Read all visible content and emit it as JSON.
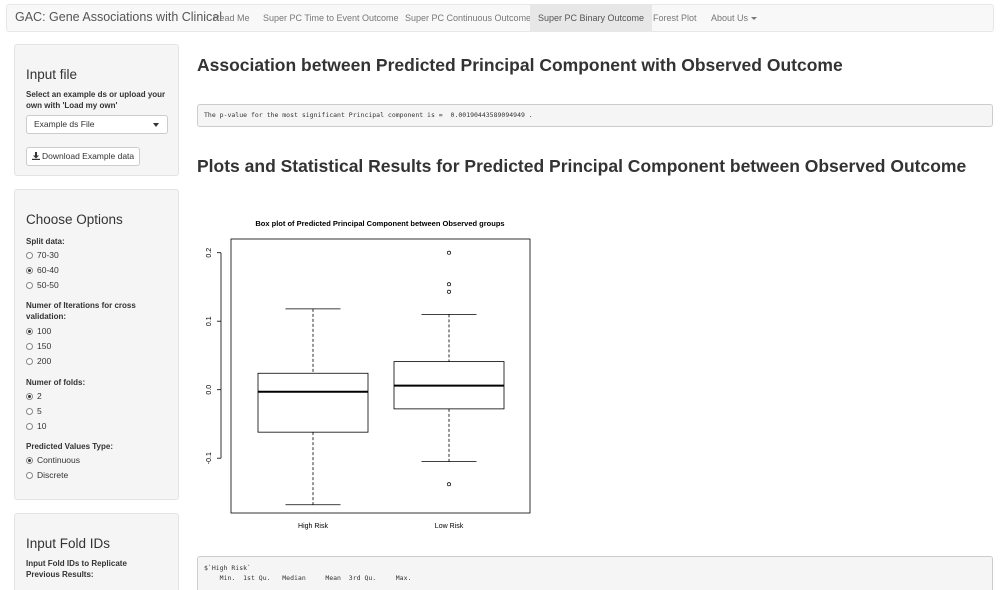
{
  "navbar": {
    "brand": "GAC: Gene Associations with Clinical",
    "tabs": [
      {
        "label": "Read Me"
      },
      {
        "label": "Super PC Time to Event Outcome"
      },
      {
        "label": "Super PC Continuous Outcome"
      },
      {
        "label": "Super PC Binary Outcome",
        "active": true
      },
      {
        "label": "Forest Plot"
      },
      {
        "label": "About Us"
      }
    ]
  },
  "input_file": {
    "title": "Input file",
    "label": "Select an example ds or upload your own with 'Load my own'",
    "select_value": "Example ds File",
    "download_label": "Download Example data"
  },
  "options": {
    "title": "Choose Options",
    "split": {
      "label": "Split data:",
      "options": [
        "70-30",
        "60-40",
        "50-50"
      ],
      "selected": "60-40"
    },
    "iterations": {
      "label": "Numer of Iterations for cross validation:",
      "options": [
        "100",
        "150",
        "200"
      ],
      "selected": "100"
    },
    "folds": {
      "label": "Numer of folds:",
      "options": [
        "2",
        "5",
        "10"
      ],
      "selected": "2"
    },
    "pred_type": {
      "label": "Predicted Values Type:",
      "options": [
        "Continuous",
        "Discrete"
      ],
      "selected": "Continuous"
    }
  },
  "fold_ids": {
    "title": "Input Fold IDs",
    "label": "Input Fold IDs to Replicate Previous Results:"
  },
  "main": {
    "heading1": "Association between Predicted Principal Component with Observed Outcome",
    "pvalue_text": "The p-value for the most significant Principal component is =  0.00190443589094949 .",
    "heading2": "Plots and Statistical Results for Predicted Principal Component between Observed Outcome",
    "summary_line1": "$`High Risk`",
    "summary_line2": "    Min.  1st Qu.   Median     Mean  3rd Qu.     Max."
  },
  "chart_data": {
    "type": "box",
    "title": "Box plot of Predicted Principal Component between Observed groups",
    "categories": [
      "High Risk",
      "Low Risk"
    ],
    "ylim": [
      -0.18,
      0.22
    ],
    "yticks": [
      -0.1,
      0.0,
      0.1,
      0.2
    ],
    "ytick_labels": [
      "-0.1",
      "0.0",
      "0.1",
      "0.2"
    ],
    "boxes": [
      {
        "name": "High Risk",
        "min": -0.168,
        "q1": -0.062,
        "median": -0.003,
        "q3": 0.024,
        "max": 0.118,
        "outliers": []
      },
      {
        "name": "Low Risk",
        "min": -0.105,
        "q1": -0.028,
        "median": 0.006,
        "q3": 0.041,
        "max": 0.11,
        "outliers": [
          -0.138,
          0.143,
          0.154,
          0.2
        ]
      }
    ]
  },
  "colors": {
    "navbar_bg": "#f8f8f8",
    "panel_bg": "#f5f5f5",
    "text": "#333333"
  }
}
